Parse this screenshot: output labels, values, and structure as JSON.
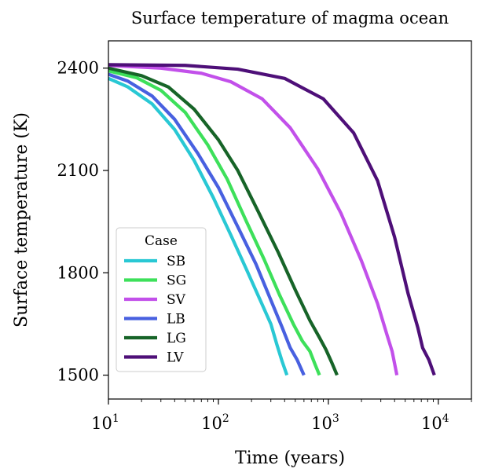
{
  "chart_data": {
    "type": "line",
    "title": "Surface temperature of magma ocean",
    "xlabel": "Time (years)",
    "ylabel": "Surface temperature (K)",
    "x_scale": "log",
    "xlim": [
      10,
      20000
    ],
    "ylim": [
      1430,
      2480
    ],
    "x_ticks": [
      {
        "value": 10,
        "base": "10",
        "exp": "1"
      },
      {
        "value": 100,
        "base": "10",
        "exp": "2"
      },
      {
        "value": 1000,
        "base": "10",
        "exp": "3"
      },
      {
        "value": 10000,
        "base": "10",
        "exp": "4"
      }
    ],
    "y_ticks": [
      {
        "value": 1500,
        "label": "1500"
      },
      {
        "value": 1800,
        "label": "1800"
      },
      {
        "value": 2100,
        "label": "2100"
      },
      {
        "value": 2400,
        "label": "2400"
      }
    ],
    "grid": false,
    "legend": {
      "title": "Case",
      "position": "lower-left"
    },
    "series": [
      {
        "name": "SB",
        "color": "#29c8d4",
        "points": [
          [
            10,
            2370
          ],
          [
            15,
            2345
          ],
          [
            25,
            2295
          ],
          [
            40,
            2220
          ],
          [
            60,
            2130
          ],
          [
            90,
            2020
          ],
          [
            130,
            1910
          ],
          [
            180,
            1810
          ],
          [
            240,
            1720
          ],
          [
            300,
            1650
          ],
          [
            340,
            1590
          ],
          [
            380,
            1540
          ],
          [
            420,
            1500
          ]
        ]
      },
      {
        "name": "SG",
        "color": "#3de05a",
        "points": [
          [
            10,
            2392
          ],
          [
            18,
            2372
          ],
          [
            30,
            2335
          ],
          [
            50,
            2270
          ],
          [
            80,
            2175
          ],
          [
            120,
            2075
          ],
          [
            180,
            1950
          ],
          [
            260,
            1840
          ],
          [
            360,
            1735
          ],
          [
            480,
            1650
          ],
          [
            580,
            1600
          ],
          [
            680,
            1570
          ],
          [
            760,
            1530
          ],
          [
            830,
            1500
          ]
        ]
      },
      {
        "name": "SV",
        "color": "#c250ea",
        "points": [
          [
            10,
            2408
          ],
          [
            30,
            2400
          ],
          [
            70,
            2385
          ],
          [
            130,
            2360
          ],
          [
            250,
            2310
          ],
          [
            450,
            2225
          ],
          [
            800,
            2105
          ],
          [
            1300,
            1975
          ],
          [
            2000,
            1835
          ],
          [
            2800,
            1710
          ],
          [
            3400,
            1620
          ],
          [
            3800,
            1570
          ],
          [
            4200,
            1500
          ]
        ]
      },
      {
        "name": "LB",
        "color": "#4860e0",
        "points": [
          [
            10,
            2382
          ],
          [
            15,
            2362
          ],
          [
            25,
            2318
          ],
          [
            40,
            2250
          ],
          [
            65,
            2150
          ],
          [
            100,
            2050
          ],
          [
            150,
            1935
          ],
          [
            220,
            1825
          ],
          [
            300,
            1720
          ],
          [
            380,
            1640
          ],
          [
            450,
            1580
          ],
          [
            520,
            1545
          ],
          [
            600,
            1500
          ]
        ]
      },
      {
        "name": "LG",
        "color": "#176428",
        "points": [
          [
            10,
            2400
          ],
          [
            20,
            2378
          ],
          [
            35,
            2345
          ],
          [
            60,
            2280
          ],
          [
            100,
            2190
          ],
          [
            150,
            2100
          ],
          [
            230,
            1980
          ],
          [
            350,
            1860
          ],
          [
            500,
            1750
          ],
          [
            680,
            1660
          ],
          [
            830,
            1610
          ],
          [
            950,
            1575
          ],
          [
            1080,
            1535
          ],
          [
            1200,
            1500
          ]
        ]
      },
      {
        "name": "LV",
        "color": "#4e0f78",
        "points": [
          [
            10,
            2410
          ],
          [
            50,
            2408
          ],
          [
            150,
            2397
          ],
          [
            400,
            2370
          ],
          [
            900,
            2310
          ],
          [
            1700,
            2210
          ],
          [
            2800,
            2070
          ],
          [
            4000,
            1905
          ],
          [
            5300,
            1740
          ],
          [
            6500,
            1640
          ],
          [
            7200,
            1580
          ],
          [
            8200,
            1545
          ],
          [
            9200,
            1500
          ]
        ]
      }
    ]
  }
}
